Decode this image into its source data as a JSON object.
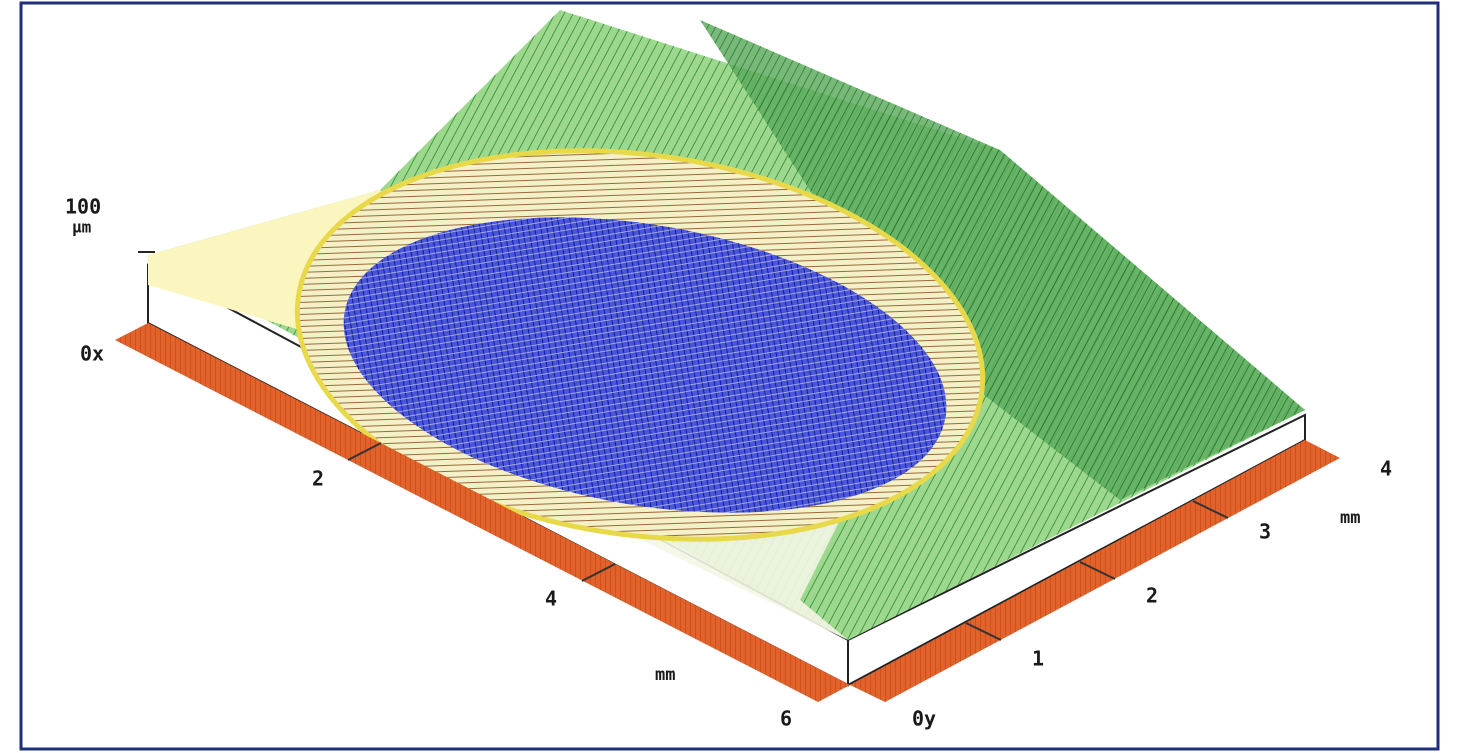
{
  "z_axis": {
    "max": "100",
    "unit": "µm"
  },
  "x_axis": {
    "origin": "0x",
    "ticks": [
      "2",
      "4",
      "6"
    ],
    "unit": "mm"
  },
  "y_axis": {
    "origin": "0y",
    "ticks": [
      "1",
      "2",
      "3",
      "4"
    ],
    "unit": "mm"
  }
}
